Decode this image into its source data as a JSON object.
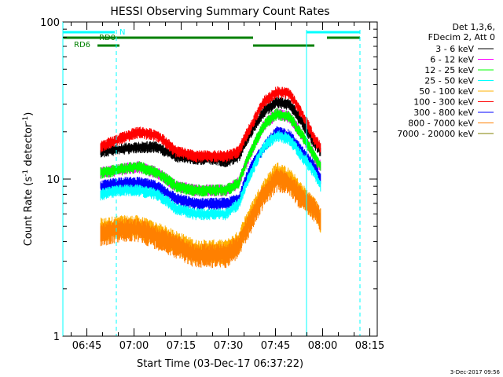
{
  "chart_data": {
    "type": "line",
    "title": "HESSI Observing Summary Count Rates",
    "xlabel": "Start Time (03-Dec-17 06:37:22)",
    "ylabel_main": "Count Rate (s",
    "ylabel_sup1": "-1",
    "ylabel_mid": " detector",
    "ylabel_sup2": "-1",
    "ylabel_end": ")",
    "x_unit": "minutes after 06:37:22",
    "xlim": [
      0,
      100
    ],
    "ylim": [
      1,
      100
    ],
    "yscale": "log",
    "xtick_labels": [
      "06:45",
      "07:00",
      "07:15",
      "07:30",
      "07:45",
      "08:00",
      "08:15"
    ],
    "xtick_values": [
      7.63,
      22.63,
      37.63,
      52.63,
      67.63,
      82.63,
      97.63
    ],
    "ytick_labels": [
      "1",
      "10",
      "100"
    ],
    "ytick_values": [
      1,
      10,
      100
    ],
    "legend_header": [
      "Det 1,3,6,",
      "FDecim 2, Att 0"
    ],
    "legend_position": "right",
    "series": [
      {
        "name": "3 - 6 keV",
        "color": "#000000",
        "x": [
          12,
          18,
          24,
          30,
          36,
          42,
          48,
          52,
          56,
          60,
          64,
          68,
          72,
          76,
          80,
          82
        ],
        "y": [
          15,
          15.5,
          16,
          16,
          14,
          13.5,
          13.5,
          13,
          14,
          20,
          27,
          31,
          30,
          23,
          17,
          15
        ]
      },
      {
        "name": "6 - 12 keV",
        "color": "#ff00ff",
        "x": [
          12,
          18,
          24,
          30,
          36,
          42,
          48,
          52,
          56,
          60,
          64,
          68,
          72,
          76,
          80,
          82
        ],
        "y": [
          11,
          11.5,
          12,
          11,
          9,
          8.5,
          8.5,
          8.5,
          9.5,
          15,
          22,
          26,
          25,
          19,
          14,
          12
        ]
      },
      {
        "name": "12 - 25 keV",
        "color": "#00ff00",
        "x": [
          12,
          18,
          24,
          30,
          36,
          42,
          48,
          52,
          56,
          60,
          64,
          68,
          72,
          76,
          80,
          82
        ],
        "y": [
          11,
          11.5,
          12,
          11,
          9,
          8.5,
          8.5,
          8.5,
          9.5,
          15,
          22,
          26,
          25,
          19,
          14,
          12
        ]
      },
      {
        "name": "25 - 50 keV",
        "color": "#00ffff",
        "x": [
          12,
          18,
          24,
          30,
          36,
          42,
          48,
          52,
          56,
          60,
          64,
          68,
          72,
          76,
          80,
          82
        ],
        "y": [
          8,
          8.5,
          8.5,
          8,
          6.5,
          6,
          6,
          6,
          7,
          11,
          16,
          19,
          18,
          14,
          11,
          9
        ]
      },
      {
        "name": "50 - 100 keV",
        "color": "#ffb000",
        "x": [
          12,
          18,
          24,
          30,
          36,
          42,
          48,
          52,
          56,
          60,
          64,
          68,
          72,
          76,
          80,
          82
        ],
        "y": [
          4.8,
          5,
          5,
          4.5,
          4,
          3.5,
          3.5,
          3.5,
          4,
          6,
          8.5,
          11,
          10,
          8,
          6.5,
          5.5
        ]
      },
      {
        "name": "100 - 300 keV",
        "color": "#ff0000",
        "x": [
          12,
          18,
          24,
          30,
          36,
          42,
          48,
          52,
          56,
          60,
          64,
          68,
          72,
          76,
          80,
          82
        ],
        "y": [
          16,
          18,
          20,
          19,
          15,
          14,
          14,
          14,
          15,
          22,
          31,
          36,
          35,
          26,
          18,
          16
        ]
      },
      {
        "name": "300 - 800 keV",
        "color": "#0000ff",
        "x": [
          12,
          18,
          24,
          30,
          36,
          42,
          48,
          52,
          56,
          60,
          64,
          68,
          72,
          76,
          80,
          82
        ],
        "y": [
          9,
          9.5,
          9.5,
          9,
          7.5,
          7,
          7,
          7,
          7.5,
          12,
          16,
          20,
          19,
          15,
          12,
          10
        ]
      },
      {
        "name": "800 - 7000 keV",
        "color": "#ff8000",
        "x": [
          12,
          18,
          24,
          30,
          36,
          42,
          48,
          52,
          56,
          60,
          64,
          68,
          72,
          76,
          80,
          82
        ],
        "y": [
          4.5,
          4.8,
          4.8,
          4.3,
          3.8,
          3.3,
          3.3,
          3.3,
          3.8,
          5.5,
          8,
          10,
          9.5,
          7.5,
          6.5,
          5.5
        ]
      },
      {
        "name": "7000 - 20000 keV",
        "color": "#808000",
        "x": [],
        "y": []
      }
    ],
    "flags": [
      {
        "name": "N",
        "color": "#00ffff",
        "x_start": 0,
        "x_end": 16.5,
        "level": 1
      },
      {
        "name": "",
        "color": "#00ffff",
        "x_start": 77.5,
        "x_end": 94.5,
        "level": 1
      },
      {
        "name": "RD0",
        "color": "#008000",
        "x_start": 0,
        "x_end": 60.5,
        "level": 2
      },
      {
        "name": "",
        "color": "#008000",
        "x_start": 84,
        "x_end": 94.5,
        "level": 2
      },
      {
        "name": "RD6",
        "color": "#008000",
        "x_start": 11,
        "x_end": 18,
        "level": 3
      },
      {
        "name": "",
        "color": "#008000",
        "x_start": 60.5,
        "x_end": 80,
        "level": 3
      }
    ],
    "vlines": [
      {
        "x": 17,
        "color": "#00ffff",
        "style": "dashed"
      },
      {
        "x": 77.5,
        "color": "#00ffff",
        "style": "solid"
      },
      {
        "x": 94.5,
        "color": "#00ffff",
        "style": "dashed"
      }
    ]
  },
  "footer_timestamp": "3-Dec-2017 09:56"
}
